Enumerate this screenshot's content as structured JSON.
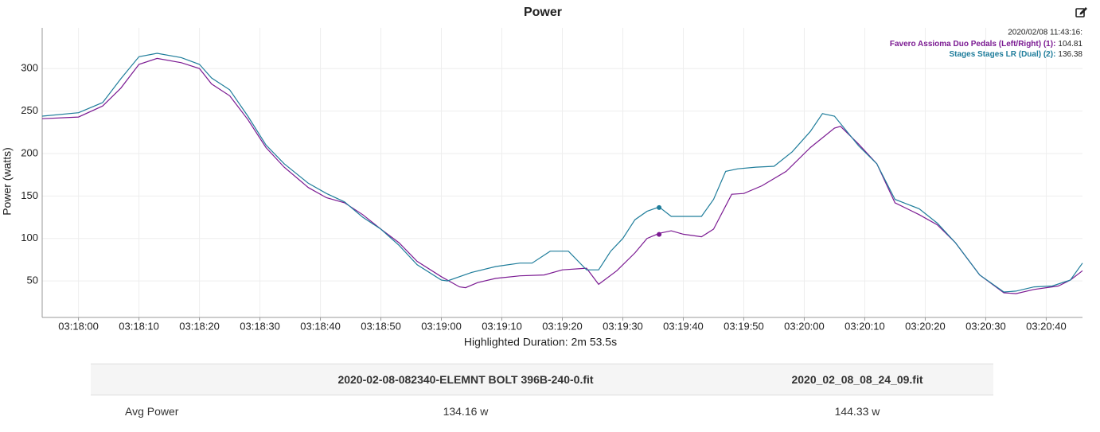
{
  "chart_data": {
    "type": "line",
    "title": "Power",
    "ylabel": "Power (watts)",
    "xlabel": "Highlighted Duration: 2m 53.5s",
    "xlim": [
      "03:17:54",
      "03:20:46"
    ],
    "xticks": [
      "03:18:00",
      "03:18:10",
      "03:18:20",
      "03:18:30",
      "03:18:40",
      "03:18:50",
      "03:19:00",
      "03:19:10",
      "03:19:20",
      "03:19:30",
      "03:19:40",
      "03:19:50",
      "03:20:00",
      "03:20:10",
      "03:20:20",
      "03:20:30",
      "03:20:40"
    ],
    "ylim": [
      7,
      348
    ],
    "yticks": [
      50,
      100,
      150,
      200,
      250,
      300
    ],
    "grid": true,
    "hover": {
      "label": "2020/02/08 11:43:16:",
      "x": "03:19:36"
    },
    "series": [
      {
        "name": "Favero Assioma Duo Pedals (Left/Right) (1):",
        "color": "#7b1a92",
        "hover_value": 104.81,
        "x": [
          "03:17:54",
          "03:18:00",
          "03:18:04",
          "03:18:07",
          "03:18:10",
          "03:18:13",
          "03:18:17",
          "03:18:20",
          "03:18:22",
          "03:18:25",
          "03:18:28",
          "03:18:31",
          "03:18:34",
          "03:18:38",
          "03:18:41",
          "03:18:44",
          "03:18:47",
          "03:18:50",
          "03:18:53",
          "03:18:56",
          "03:19:00",
          "03:19:03",
          "03:19:04",
          "03:19:06",
          "03:19:09",
          "03:19:13",
          "03:19:17",
          "03:19:20",
          "03:19:24",
          "03:19:26",
          "03:19:29",
          "03:19:32",
          "03:19:34",
          "03:19:36",
          "03:19:38",
          "03:19:40",
          "03:19:43",
          "03:19:45",
          "03:19:48",
          "03:19:50",
          "03:19:53",
          "03:19:57",
          "03:20:01",
          "03:20:05",
          "03:20:06",
          "03:20:09",
          "03:20:12",
          "03:20:15",
          "03:20:19",
          "03:20:22",
          "03:20:25",
          "03:20:29",
          "03:20:33",
          "03:20:35",
          "03:20:38",
          "03:20:42",
          "03:20:44",
          "03:20:46"
        ],
        "values": [
          241,
          243,
          256,
          277,
          305,
          312,
          307,
          300,
          282,
          268,
          240,
          207,
          184,
          160,
          148,
          142,
          128,
          111,
          95,
          73,
          55,
          43,
          42,
          48,
          53,
          56,
          57,
          63,
          65,
          46,
          62,
          83,
          100,
          106,
          109,
          105,
          102,
          111,
          152,
          153,
          162,
          179,
          207,
          230,
          232,
          211,
          188,
          142,
          128,
          116,
          95,
          57,
          36,
          35,
          40,
          44,
          51,
          62
        ]
      },
      {
        "name": "Stages Stages LR (Dual) (2):",
        "color": "#1f7d9b",
        "hover_value": 136.38,
        "x": [
          "03:17:54",
          "03:18:00",
          "03:18:04",
          "03:18:07",
          "03:18:10",
          "03:18:13",
          "03:18:17",
          "03:18:20",
          "03:18:22",
          "03:18:25",
          "03:18:28",
          "03:18:31",
          "03:18:34",
          "03:18:38",
          "03:18:41",
          "03:18:44",
          "03:18:47",
          "03:18:50",
          "03:18:53",
          "03:18:56",
          "03:19:00",
          "03:19:01",
          "03:19:05",
          "03:19:09",
          "03:19:13",
          "03:19:15",
          "03:19:18",
          "03:19:21",
          "03:19:24",
          "03:19:26",
          "03:19:28",
          "03:19:30",
          "03:19:32",
          "03:19:34",
          "03:19:36",
          "03:19:38",
          "03:19:43",
          "03:19:45",
          "03:19:47",
          "03:19:49",
          "03:19:52",
          "03:19:55",
          "03:19:58",
          "03:20:01",
          "03:20:03",
          "03:20:05",
          "03:20:09",
          "03:20:12",
          "03:20:15",
          "03:20:19",
          "03:20:22",
          "03:20:25",
          "03:20:29",
          "03:20:33",
          "03:20:35",
          "03:20:38",
          "03:20:41",
          "03:20:44",
          "03:20:46"
        ],
        "values": [
          244,
          248,
          260,
          288,
          314,
          318,
          313,
          305,
          289,
          275,
          244,
          210,
          188,
          165,
          153,
          143,
          125,
          111,
          92,
          69,
          51,
          50,
          60,
          67,
          71,
          71,
          85,
          85,
          63,
          63,
          85,
          100,
          122,
          132,
          137,
          126,
          126,
          146,
          179,
          182,
          184,
          185,
          202,
          226,
          247,
          244,
          209,
          188,
          146,
          135,
          118,
          95,
          57,
          37,
          38,
          43,
          44,
          51,
          71
        ]
      }
    ]
  },
  "table": {
    "header": [
      "2020-02-08-082340-ELEMNT BOLT 396B-240-0.fit",
      "2020_02_08_08_24_09.fit"
    ],
    "rows": [
      [
        "Avg Power",
        "134.16 w",
        "144.33 w"
      ]
    ]
  }
}
